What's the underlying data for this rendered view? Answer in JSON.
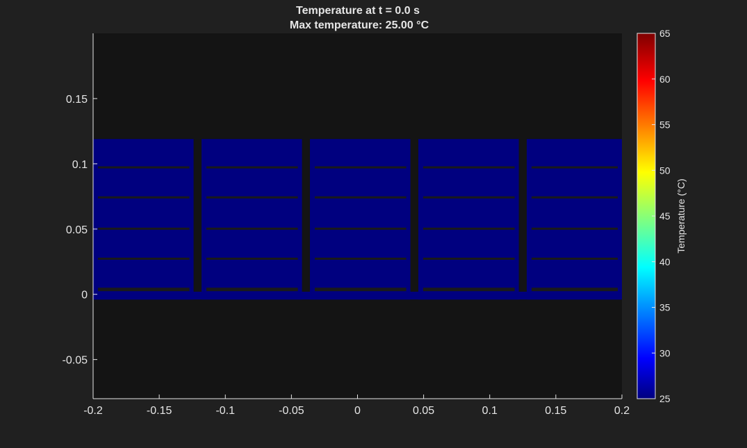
{
  "chart_data": {
    "type": "heatmap",
    "title_line1": "Temperature at t = 0.0 s",
    "title_line2": "Max temperature: 25.00 °C",
    "xlim": [
      -0.2,
      0.2
    ],
    "ylim": [
      -0.08,
      0.2
    ],
    "x_ticks": [
      "-0.2",
      "-0.15",
      "-0.1",
      "-0.05",
      "0",
      "0.05",
      "0.1",
      "0.15",
      "0.2"
    ],
    "y_ticks": [
      "0.15",
      "0.1",
      "0.05",
      "0",
      "-0.05"
    ],
    "y_tick_values": [
      0.15,
      0.1,
      0.05,
      0,
      -0.05
    ],
    "x_tick_values": [
      -0.2,
      -0.15,
      -0.1,
      -0.05,
      0,
      0.05,
      0.1,
      0.15,
      0.2
    ],
    "field_value_celsius": 25.0,
    "colormap": "jet",
    "colorbar": {
      "label": "Temperature (°C)",
      "range": [
        25,
        65
      ],
      "ticks": [
        "65",
        "60",
        "55",
        "50",
        "45",
        "40",
        "35",
        "30",
        "25"
      ],
      "tick_values": [
        65,
        60,
        55,
        50,
        45,
        40,
        35,
        30,
        25
      ]
    },
    "grid": false,
    "module_regions_x": [
      [
        -0.2,
        -0.124
      ],
      [
        -0.118,
        -0.042
      ],
      [
        -0.036,
        0.04
      ],
      [
        0.046,
        0.122
      ],
      [
        0.128,
        0.2
      ]
    ],
    "domain_y": [
      -0.004,
      0.119
    ],
    "gap_y_values": [
      0.097,
      0.074,
      0.05,
      0.027,
      0.004
    ],
    "colors": {
      "figure_background": "#202020",
      "axes_background": "#141414",
      "field_color": "#00007f",
      "gap_color": "#1a1a1a",
      "axis_color": "#e6e6e6"
    }
  }
}
